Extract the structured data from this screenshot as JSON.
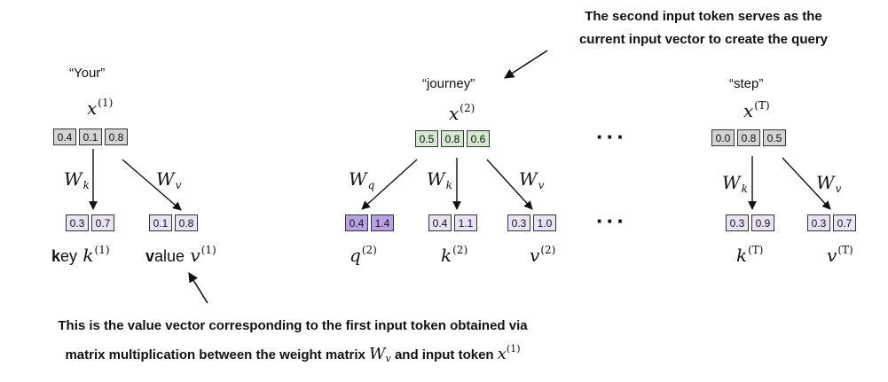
{
  "top_note": {
    "line1": "The second input token serves as the",
    "line2": "current input vector to create the query"
  },
  "bottom_note": {
    "part1": "This is the value vector corresponding to the first input token obtained via",
    "part2": "matrix multiplication between the weight matrix",
    "wsym": "W",
    "wsub": "v",
    "part3": "and input token",
    "xsym": "x",
    "xsup": "(1)"
  },
  "tokens": {
    "t1": {
      "word": "“Your”",
      "sym": "x",
      "sup": "(1)",
      "values": [
        "0.4",
        "0.1",
        "0.8"
      ]
    },
    "t2": {
      "word": "“journey”",
      "sym": "x",
      "sup": "(2)",
      "values": [
        "0.5",
        "0.8",
        "0.6"
      ]
    },
    "t3": {
      "word": "“step”",
      "sym": "x",
      "sup": "(T)",
      "values": [
        "0.0",
        "0.8",
        "0.5"
      ]
    }
  },
  "weights": {
    "wk": {
      "sym": "W",
      "sub": "k"
    },
    "wv": {
      "sym": "W",
      "sub": "v"
    },
    "wq": {
      "sym": "W",
      "sub": "q"
    }
  },
  "outputs": {
    "k1": {
      "prefix_bold": "k",
      "prefix_rest": "ey",
      "sym": "k",
      "sup": "(1)",
      "values": [
        "0.3",
        "0.7"
      ]
    },
    "v1": {
      "prefix_bold": "v",
      "prefix_rest": "alue",
      "sym": "v",
      "sup": "(1)",
      "values": [
        "0.1",
        "0.8"
      ]
    },
    "q2": {
      "sym": "q",
      "sup": "(2)",
      "values": [
        "0.4",
        "1.4"
      ]
    },
    "k2": {
      "sym": "k",
      "sup": "(2)",
      "values": [
        "0.4",
        "1.1"
      ]
    },
    "v2": {
      "sym": "v",
      "sup": "(2)",
      "values": [
        "0.3",
        "1.0"
      ]
    },
    "kT": {
      "sym": "k",
      "sup": "(T)",
      "values": [
        "0.3",
        "0.9"
      ]
    },
    "vT": {
      "sym": "v",
      "sup": "(T)",
      "values": [
        "0.3",
        "0.7"
      ]
    }
  },
  "ellipsis": "···",
  "colors": {
    "input_gray": "#d4d4d4",
    "input_green": "#d5e8d0",
    "output_lavender": "#e8e4f6",
    "query_purple": "#b8a1e6"
  }
}
